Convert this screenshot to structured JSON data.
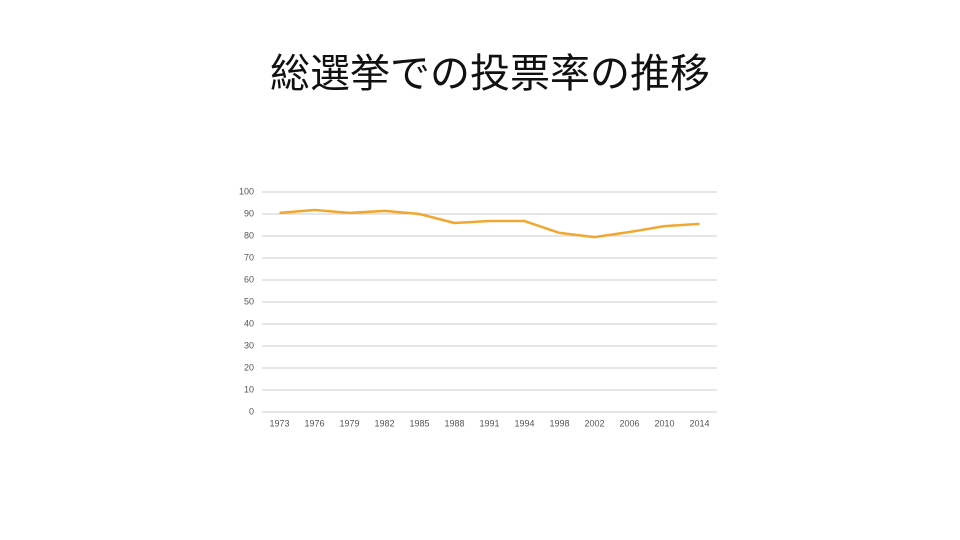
{
  "chart_data": {
    "type": "line",
    "title": "総選挙での投票率の推移",
    "categories": [
      "1973",
      "1976",
      "1979",
      "1982",
      "1985",
      "1988",
      "1991",
      "1994",
      "1998",
      "2002",
      "2006",
      "2010",
      "2014"
    ],
    "values": [
      90.5,
      91.8,
      90.5,
      91.4,
      90,
      85.9,
      86.8,
      86.8,
      81.4,
      79.5,
      81.8,
      84.5,
      85.5
    ],
    "color": "#f0a830",
    "ylim": [
      0,
      100
    ],
    "yticks": [
      0,
      10,
      20,
      30,
      40,
      50,
      60,
      70,
      80,
      90,
      100
    ],
    "grid": true
  }
}
